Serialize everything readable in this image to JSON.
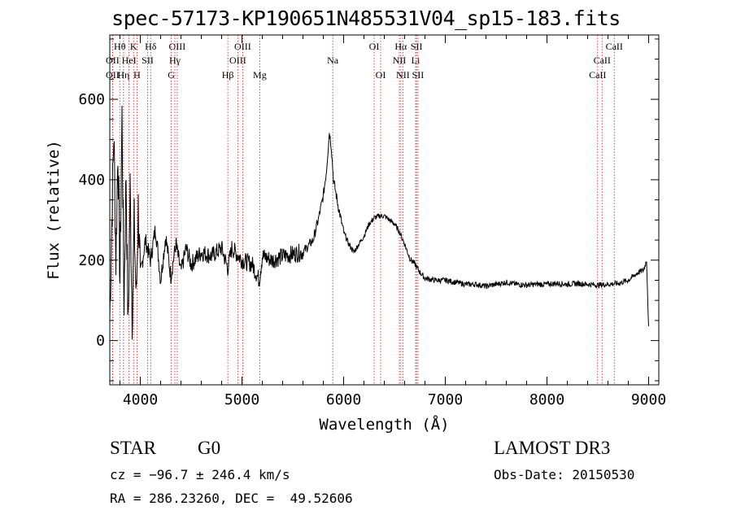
{
  "title": "spec-57173-KP190651N485531V04_sp15-183.fits",
  "info": {
    "class_label": "STAR",
    "subclass_label": "G0",
    "survey": "LAMOST DR3",
    "cz_text": "cz = −96.7 ± 246.4 km/s",
    "obs_date_text": "Obs-Date: 20150530",
    "coords_text": "RA = 286.23260, DEC =  49.52606"
  },
  "chart_data": {
    "type": "line",
    "title": "spec-57173-KP190651N485531V04_sp15-183.fits",
    "xlabel": "Wavelength (Å)",
    "ylabel": "Flux (relative)",
    "xlim": [
      3700,
      9100
    ],
    "ylim": [
      -110,
      760
    ],
    "x_ticks": [
      4000,
      5000,
      6000,
      7000,
      8000,
      9000
    ],
    "y_ticks": [
      0,
      200,
      400,
      600
    ],
    "series": [
      {
        "name": "flux",
        "x": [
          3700,
          3720,
          3740,
          3760,
          3780,
          3800,
          3820,
          3840,
          3860,
          3880,
          3900,
          3920,
          3940,
          3960,
          3980,
          4000,
          4050,
          4100,
          4150,
          4200,
          4250,
          4300,
          4350,
          4400,
          4450,
          4500,
          4600,
          4700,
          4800,
          4860,
          4900,
          5000,
          5100,
          5170,
          5200,
          5300,
          5400,
          5500,
          5600,
          5700,
          5750,
          5800,
          5830,
          5860,
          5880,
          5900,
          5950,
          6000,
          6050,
          6100,
          6150,
          6200,
          6250,
          6300,
          6350,
          6400,
          6450,
          6500,
          6550,
          6600,
          6650,
          6700,
          6750,
          6800,
          6900,
          7000,
          7100,
          7200,
          7300,
          7400,
          7500,
          7600,
          7700,
          7800,
          7900,
          8000,
          8100,
          8200,
          8300,
          8400,
          8500,
          8600,
          8700,
          8800,
          8850,
          8900,
          8950,
          8980,
          9000
        ],
        "values": [
          60,
          300,
          520,
          200,
          480,
          150,
          560,
          100,
          420,
          20,
          380,
          60,
          290,
          100,
          330,
          160,
          250,
          200,
          280,
          150,
          260,
          160,
          240,
          170,
          230,
          190,
          220,
          210,
          230,
          180,
          230,
          200,
          190,
          150,
          210,
          200,
          210,
          215,
          220,
          250,
          300,
          360,
          420,
          520,
          480,
          400,
          330,
          270,
          240,
          220,
          240,
          260,
          290,
          305,
          310,
          310,
          300,
          290,
          270,
          240,
          205,
          190,
          170,
          155,
          150,
          150,
          145,
          140,
          140,
          135,
          140,
          145,
          140,
          138,
          140,
          140,
          142,
          140,
          142,
          140,
          138,
          140,
          142,
          150,
          160,
          170,
          175,
          200,
          30
        ]
      }
    ],
    "line_markers": [
      {
        "label": "Hθ",
        "wave": 3798,
        "row": 0
      },
      {
        "label": "K",
        "wave": 3934,
        "row": 0
      },
      {
        "label": "Hδ",
        "wave": 4102,
        "row": 0
      },
      {
        "label": "OIII",
        "wave": 4363,
        "row": 0
      },
      {
        "label": "OIII",
        "wave": 5007,
        "row": 0
      },
      {
        "label": "OI",
        "wave": 6300,
        "row": 0
      },
      {
        "label": "Hα",
        "wave": 6563,
        "row": 0
      },
      {
        "label": "SII",
        "wave": 6717,
        "row": 0
      },
      {
        "label": "CaII",
        "wave": 8662,
        "row": 0
      },
      {
        "label": "OII",
        "wave": 3727,
        "row": 1
      },
      {
        "label": "HeI",
        "wave": 3889,
        "row": 1
      },
      {
        "label": "SII",
        "wave": 4072,
        "row": 1
      },
      {
        "label": "Hγ",
        "wave": 4340,
        "row": 1
      },
      {
        "label": "OIII",
        "wave": 4959,
        "row": 1
      },
      {
        "label": "Na",
        "wave": 5893,
        "row": 1
      },
      {
        "label": "NII",
        "wave": 6548,
        "row": 1
      },
      {
        "label": "Li",
        "wave": 6708,
        "row": 1
      },
      {
        "label": "CaII",
        "wave": 8542,
        "row": 1
      },
      {
        "label": "OII",
        "wave": 3727,
        "row": 2
      },
      {
        "label": "Hη",
        "wave": 3835,
        "row": 2
      },
      {
        "label": "H",
        "wave": 3968,
        "row": 2
      },
      {
        "label": "G",
        "wave": 4305,
        "row": 2
      },
      {
        "label": "Hβ",
        "wave": 4861,
        "row": 2
      },
      {
        "label": "Mg",
        "wave": 5175,
        "row": 2
      },
      {
        "label": "OI",
        "wave": 6364,
        "row": 2
      },
      {
        "label": "NII",
        "wave": 6583,
        "row": 2
      },
      {
        "label": "SII",
        "wave": 6731,
        "row": 2
      },
      {
        "label": "CaII",
        "wave": 8498,
        "row": 2
      }
    ]
  }
}
